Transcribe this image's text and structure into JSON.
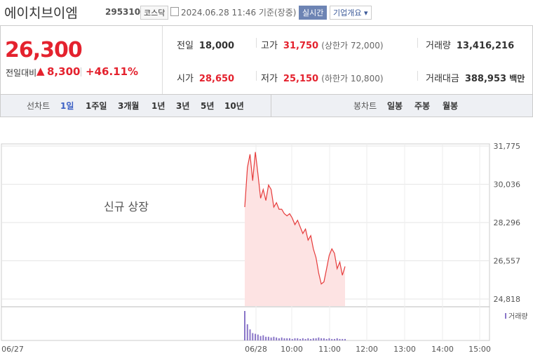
{
  "header": {
    "name": "에이치브이엠",
    "code": "295310",
    "market": "코스닥",
    "timestamp": "2024.06.28 11:46 기준(장중)",
    "realtime": "실시간",
    "company_info": "기업개요"
  },
  "quote": {
    "price": "26,300",
    "change_label": "전일대비",
    "change_arrow": "▲",
    "change": "8,300",
    "change_pct": "+46.11%"
  },
  "stats": {
    "prev_label": "전일",
    "prev": "18,000",
    "high_label": "고가",
    "high": "31,750",
    "upper_limit": "(상한가 72,000)",
    "volume_label": "거래량",
    "volume": "13,416,216",
    "open_label": "시가",
    "open": "28,650",
    "low_label": "저가",
    "low": "25,150",
    "lower_limit": "(하한가 10,800)",
    "amount_label": "거래대금",
    "amount": "388,953",
    "amount_unit": "백만"
  },
  "tabs": {
    "line_label": "선차트",
    "line": [
      "1일",
      "1주일",
      "3개월",
      "1년",
      "3년",
      "5년",
      "10년"
    ],
    "candle_label": "봉차트",
    "candle": [
      "일봉",
      "주봉",
      "월봉"
    ]
  },
  "chart": {
    "ylim": [
      24818,
      31775
    ],
    "yticks": [
      {
        "value": 31775,
        "label": "31,775"
      },
      {
        "value": 30036,
        "label": "30,036"
      },
      {
        "value": 28296,
        "label": "28,296"
      },
      {
        "value": 26557,
        "label": "26,557"
      },
      {
        "value": 24818,
        "label": "24,818"
      }
    ],
    "x_labels": [
      "06/27",
      "06/28",
      "10:00",
      "11:00",
      "12:00",
      "13:00",
      "14:00",
      "15:00"
    ],
    "annotation": "신규 상장",
    "volume_legend": "거래량",
    "price": [
      29000,
      30800,
      31400,
      30200,
      31500,
      30500,
      29400,
      29800,
      29300,
      30000,
      29800,
      29000,
      29200,
      28900,
      28900,
      28700,
      28600,
      28700,
      28500,
      28200,
      28400,
      28100,
      27800,
      28000,
      27500,
      27700,
      27100,
      26700,
      26000,
      25500,
      25600,
      26200,
      26800,
      27100,
      26900,
      26200,
      26500,
      25900,
      26300
    ],
    "volume": [
      40,
      22,
      15,
      10,
      9,
      8,
      6,
      7,
      5,
      5,
      4,
      5,
      4,
      3,
      4,
      3,
      3,
      3,
      2,
      3,
      3,
      2,
      3,
      2,
      3,
      2,
      3,
      3,
      4,
      3,
      3,
      2,
      3,
      2,
      2,
      3,
      2,
      2,
      2
    ]
  }
}
